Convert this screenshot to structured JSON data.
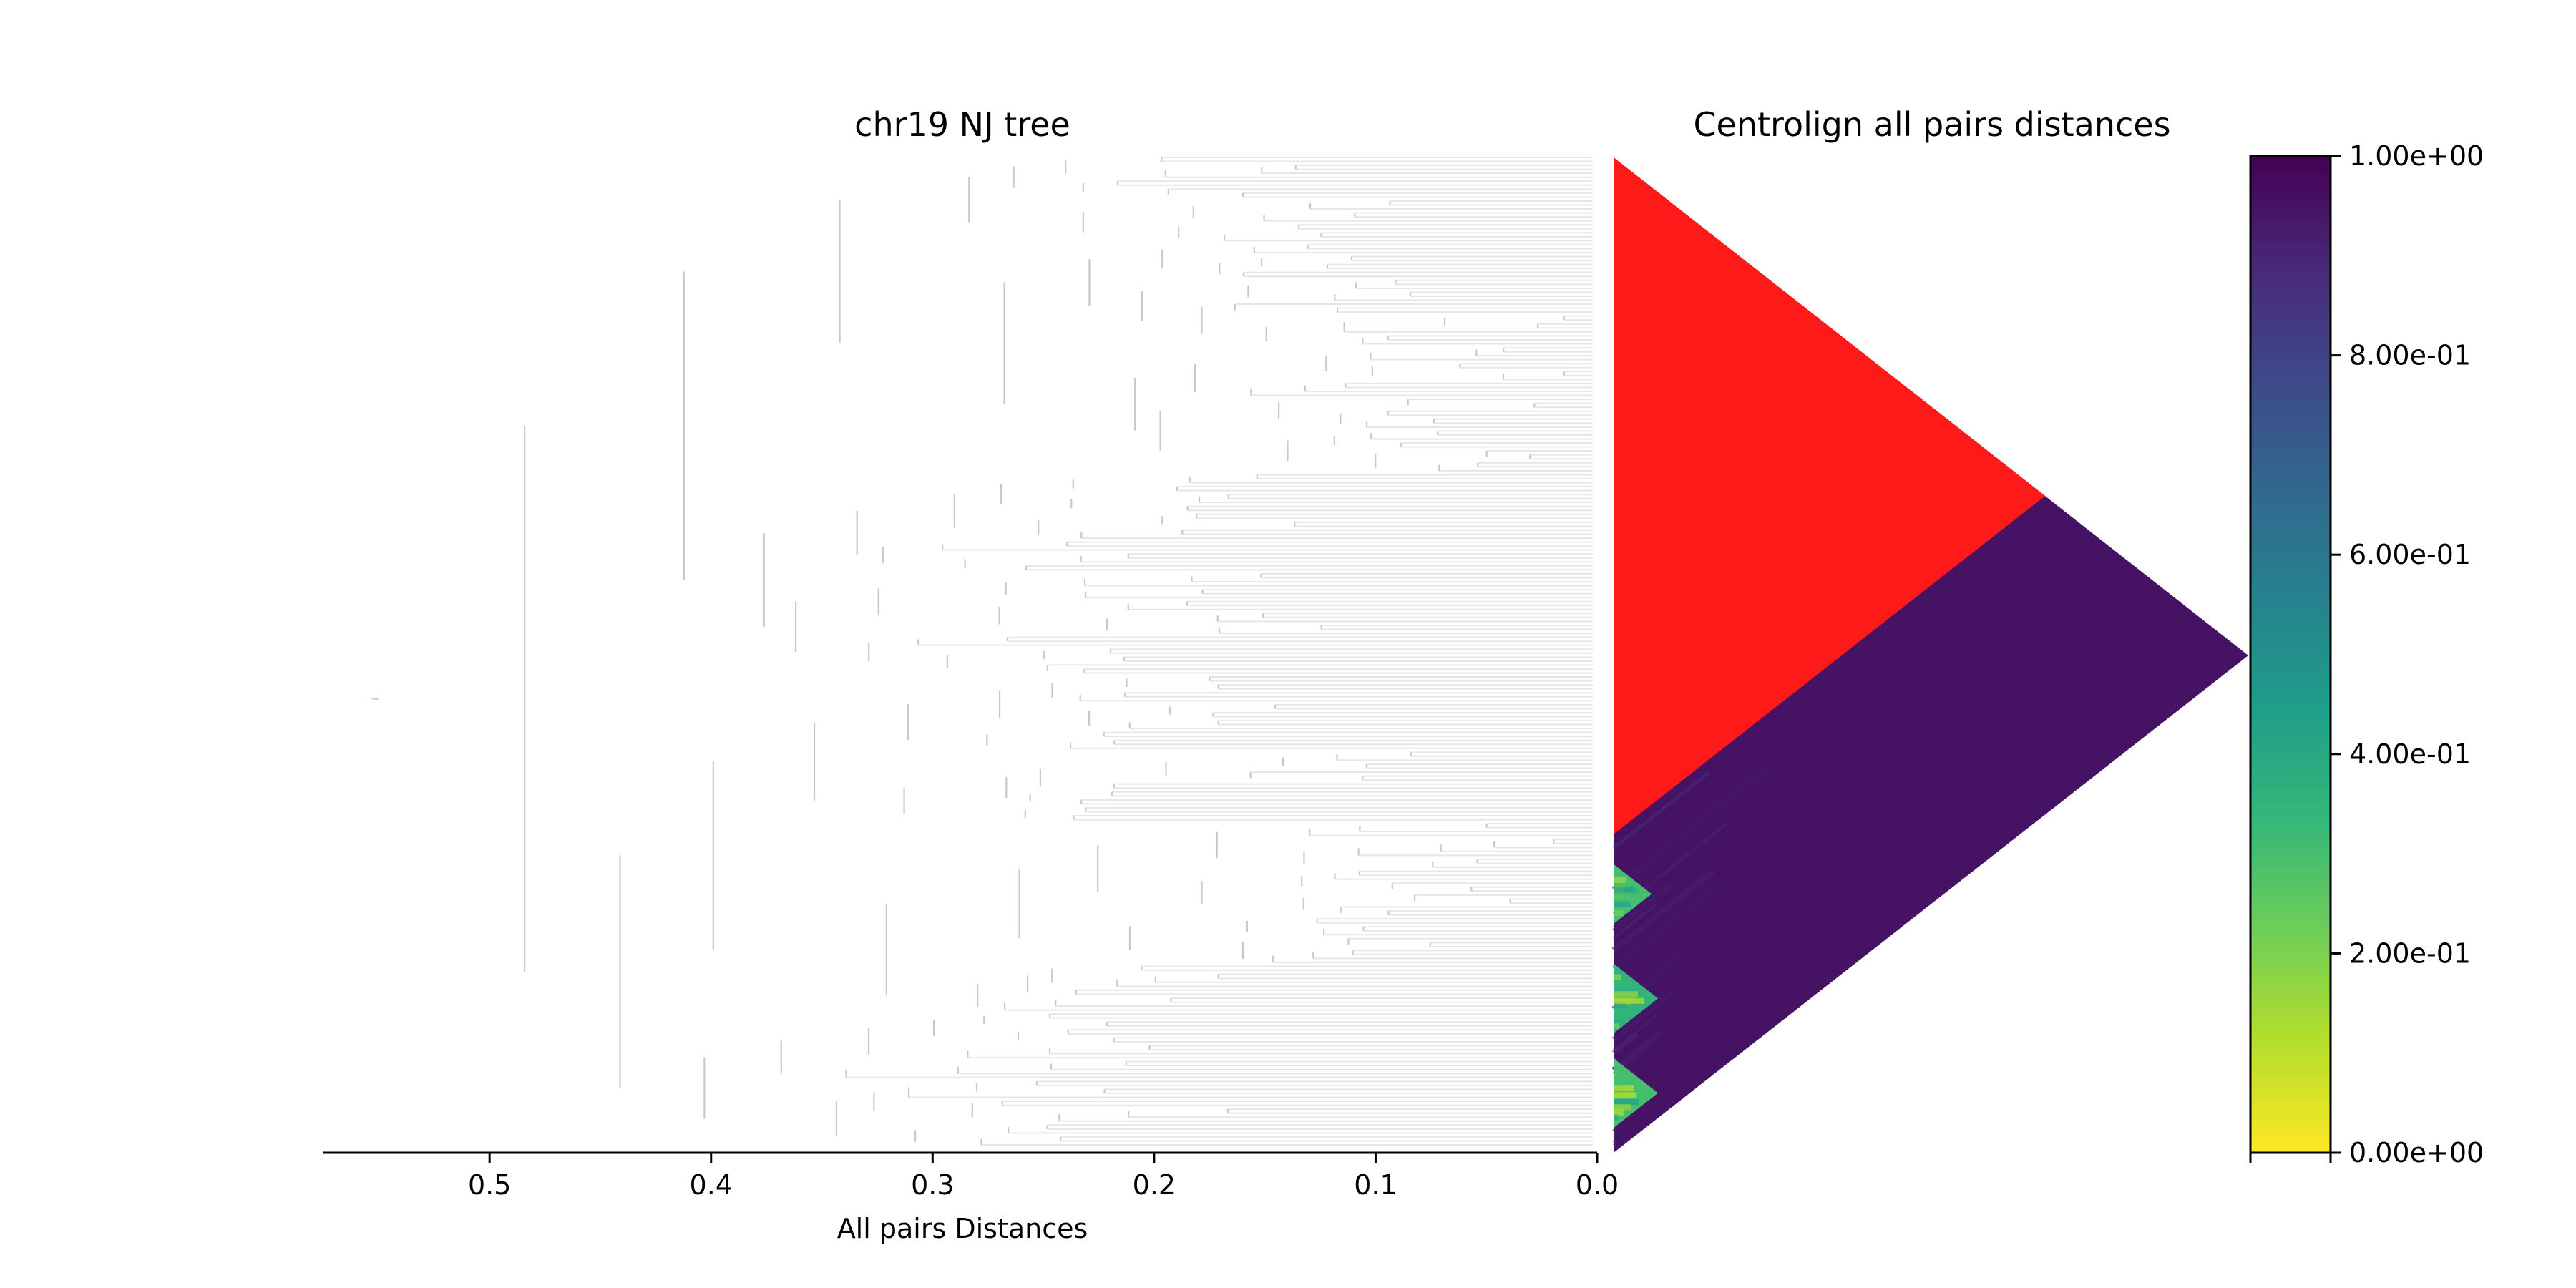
{
  "chart_data": {
    "type": "heatmap",
    "tree": {
      "title": "chr19 NJ tree",
      "xlabel": "All pairs Distances",
      "xlim": [
        0.575,
        0.0
      ],
      "x_ticks": [
        0.5,
        0.4,
        0.3,
        0.2,
        0.1,
        0.0
      ],
      "x_tick_labels": [
        "0.5",
        "0.4",
        "0.3",
        "0.2",
        "0.1",
        "0.0"
      ],
      "root_distance": 0.55,
      "n_leaves_approx": 250
    },
    "matrix": {
      "title": "Centrolign all pairs distances",
      "shape": "upper-triangle rotated 45 degrees",
      "missing_color": "#ff1a1a",
      "missing_block_fraction": 0.68,
      "dominant_value": 0.95,
      "low_distance_clusters": [
        {
          "position_fraction": 0.74,
          "size_fraction": 0.06,
          "value": 0.3
        },
        {
          "position_fraction": 0.845,
          "size_fraction": 0.07,
          "value": 0.35
        },
        {
          "position_fraction": 0.94,
          "size_fraction": 0.07,
          "value": 0.3
        }
      ]
    },
    "colorbar": {
      "colormap": "viridis_r",
      "vmin": 0.0,
      "vmax": 1.0,
      "ticks": [
        1.0,
        0.8,
        0.6,
        0.4,
        0.2,
        0.0
      ],
      "tick_labels": [
        "1.00e+00",
        "8.00e-01",
        "6.00e-01",
        "4.00e-01",
        "2.00e-01",
        "0.00e+00"
      ]
    },
    "colors": {
      "tree_branch": "#c8c8c8",
      "missing": "#ff1a1a",
      "viridis": [
        "#fde725",
        "#b5de2b",
        "#6ece58",
        "#35b779",
        "#1f9e89",
        "#26828e",
        "#31688e",
        "#3e4989",
        "#482878",
        "#440154"
      ]
    }
  }
}
